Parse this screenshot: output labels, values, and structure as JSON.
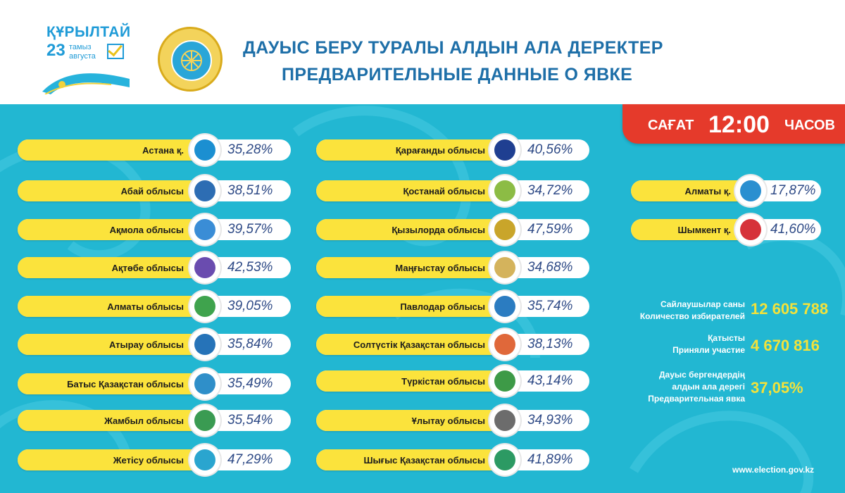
{
  "header": {
    "kurultai": {
      "title": "ҚҰРЫЛТАЙ",
      "day": "23",
      "month_kz": "тамыз",
      "month_ru": "августа"
    },
    "title_kz": "ДАУЫС БЕРУ ТУРАЛЫ АЛДЫН АЛА ДЕРЕКТЕР",
    "title_ru": "ПРЕДВАРИТЕЛЬНЫЕ ДАННЫЕ О ЯВКЕ"
  },
  "time_badge": {
    "label_kz": "САҒАТ",
    "time": "12:00",
    "label_ru": "ЧАСОВ"
  },
  "colors": {
    "panel": "#22b7d2",
    "pill": "#fbe33c",
    "value_text": "#2e4a86",
    "accent_red": "#e53a2b",
    "stat_value": "#f3e23a",
    "header_title": "#1e6fa8"
  },
  "regions_col1": [
    {
      "name": "Астана  қ.",
      "value": "35,28%",
      "icon": "astana-emblem-icon",
      "color": "#1b8fd1"
    },
    {
      "name": "Абай облысы",
      "value": "38,51%",
      "icon": "abai-emblem-icon",
      "color": "#2d6db3"
    },
    {
      "name": "Ақмола облысы",
      "value": "39,57%",
      "icon": "aqmola-emblem-icon",
      "color": "#3a8dd6"
    },
    {
      "name": "Ақтөбе облысы",
      "value": "42,53%",
      "icon": "aktobe-emblem-icon",
      "color": "#6a4caf"
    },
    {
      "name": "Алматы облысы",
      "value": "39,05%",
      "icon": "almaty-region-emblem-icon",
      "color": "#3fa34d"
    },
    {
      "name": "Атырау  облысы",
      "value": "35,84%",
      "icon": "atyrau-emblem-icon",
      "color": "#2673b8"
    },
    {
      "name": "Батыс Қазақстан облысы",
      "value": "35,49%",
      "icon": "west-kazakhstan-emblem-icon",
      "color": "#2f8fc9"
    },
    {
      "name": "Жамбыл облысы",
      "value": "35,54%",
      "icon": "zhambyl-emblem-icon",
      "color": "#3a9b52"
    },
    {
      "name": "Жетісу облысы",
      "value": "47,29%",
      "icon": "zhetysu-emblem-icon",
      "color": "#2aa5cf"
    }
  ],
  "regions_col2": [
    {
      "name": "Қарағанды облысы",
      "value": "40,56%",
      "icon": "karaganda-emblem-icon",
      "color": "#1f3f91"
    },
    {
      "name": "Қостанай облысы",
      "value": "34,72%",
      "icon": "kostanay-emblem-icon",
      "color": "#8cbc45"
    },
    {
      "name": "Қызылорда облысы",
      "value": "47,59%",
      "icon": "kyzylorda-emblem-icon",
      "color": "#c9a52a"
    },
    {
      "name": "Маңғыстау облысы",
      "value": "34,68%",
      "icon": "mangystau-emblem-icon",
      "color": "#d4b35c"
    },
    {
      "name": "Павлодар облысы",
      "value": "35,74%",
      "icon": "pavlodar-emblem-icon",
      "color": "#2b7cc1"
    },
    {
      "name": "Солтүстік Қазақстан облысы",
      "value": "38,13%",
      "icon": "north-kazakhstan-emblem-icon",
      "color": "#e0683a"
    },
    {
      "name": "Түркістан облысы",
      "value": "43,14%",
      "icon": "turkistan-emblem-icon",
      "color": "#3d9a47"
    },
    {
      "name": "Ұлытау облысы",
      "value": "34,93%",
      "icon": "ulytau-emblem-icon",
      "color": "#6c6c6c"
    },
    {
      "name": "Шығыс Қазақстан облысы",
      "value": "41,89%",
      "icon": "east-kazakhstan-emblem-icon",
      "color": "#2c9a63"
    }
  ],
  "cities_col3": [
    {
      "name": "Алматы  қ.",
      "value": "17,87%",
      "icon": "almaty-city-emblem-icon",
      "color": "#2a8fd0"
    },
    {
      "name": "Шымкент қ.",
      "value": "41,60%",
      "icon": "shymkent-emblem-icon",
      "color": "#d6323a"
    }
  ],
  "stats": {
    "voters_label_kz": "Сайлаушылар саны",
    "voters_label_ru": "Количество избирателей",
    "voters_value": "12 605 788",
    "participated_label_kz": "Қатысты",
    "participated_label_ru": "Приняли участие",
    "participated_value": "4 670 816",
    "turnout_label_kz1": "Дауыс бергендердің",
    "turnout_label_kz2": "алдын ала дерегі",
    "turnout_label_ru": "Предварительная явка",
    "turnout_value": "37,05%"
  },
  "footer": {
    "website": "www.election.gov.kz"
  }
}
